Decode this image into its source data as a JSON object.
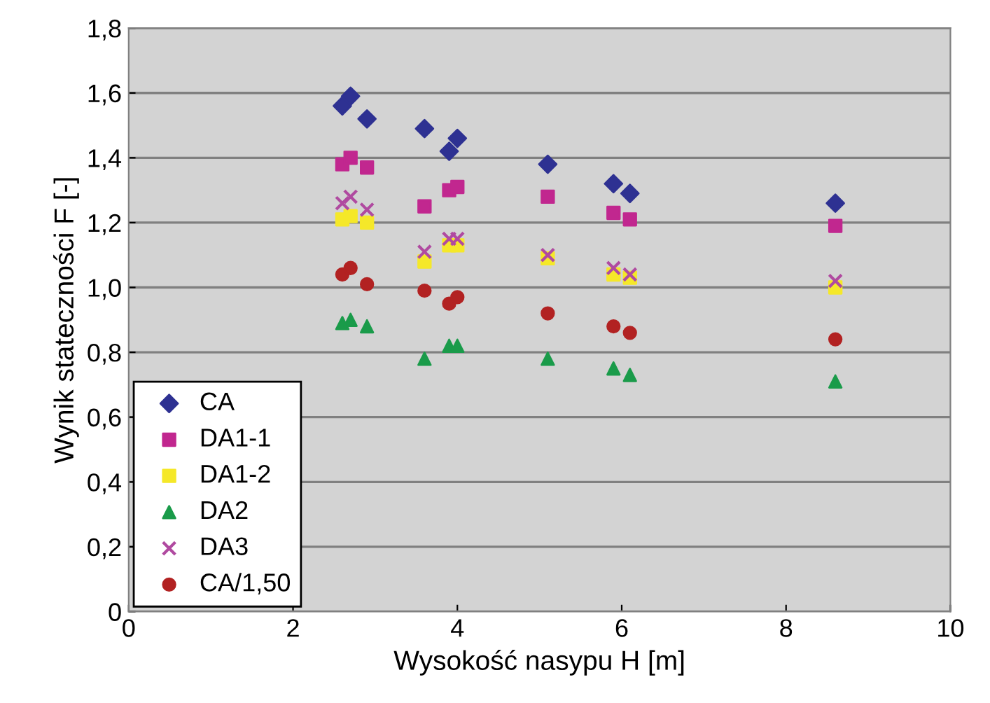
{
  "chart_data": {
    "type": "scatter",
    "xlabel": "Wysokość nasypu H [m]",
    "ylabel": "Wynik stateczności F [-]",
    "x": [
      2.6,
      2.7,
      2.9,
      3.6,
      3.9,
      4.0,
      5.1,
      5.9,
      6.1,
      8.6
    ],
    "series": [
      {
        "name": "CA",
        "color": "#2e3192",
        "marker": "diamond",
        "values": [
          1.56,
          1.59,
          1.52,
          1.49,
          1.42,
          1.46,
          1.38,
          1.32,
          1.29,
          1.26
        ]
      },
      {
        "name": "DA1-1",
        "color": "#c1278f",
        "marker": "square",
        "values": [
          1.38,
          1.4,
          1.37,
          1.25,
          1.3,
          1.31,
          1.28,
          1.23,
          1.21,
          1.19
        ]
      },
      {
        "name": "DA1-2",
        "color": "#f5e829",
        "marker": "square",
        "values": [
          1.21,
          1.22,
          1.2,
          1.08,
          1.13,
          1.13,
          1.09,
          1.04,
          1.03,
          1.0
        ]
      },
      {
        "name": "DA2",
        "color": "#1a9b4a",
        "marker": "triangle",
        "values": [
          0.89,
          0.9,
          0.88,
          0.78,
          0.82,
          0.82,
          0.78,
          0.75,
          0.73,
          0.71
        ]
      },
      {
        "name": "DA3",
        "color": "#b04aa0",
        "marker": "cross",
        "values": [
          1.26,
          1.28,
          1.24,
          1.11,
          1.15,
          1.15,
          1.1,
          1.06,
          1.04,
          1.02
        ]
      },
      {
        "name": "CA/1,50",
        "color": "#b22222",
        "marker": "circle",
        "values": [
          1.04,
          1.06,
          1.01,
          0.99,
          0.95,
          0.97,
          0.92,
          0.88,
          0.86,
          0.84
        ]
      }
    ],
    "xlim": [
      0,
      10
    ],
    "xticks": [
      0,
      2,
      4,
      6,
      8,
      10
    ],
    "ylim": [
      0,
      1.8
    ],
    "yticks": [
      0,
      {
        "value": 0.2,
        "label": "0,2"
      },
      {
        "value": 0.4,
        "label": "0,4"
      },
      {
        "value": 0.6,
        "label": "0,6"
      },
      {
        "value": 0.8,
        "label": "0,8"
      },
      {
        "value": 1.0,
        "label": "1,0"
      },
      {
        "value": 1.2,
        "label": "1,2"
      },
      {
        "value": 1.4,
        "label": "1,4"
      },
      {
        "value": 1.6,
        "label": "1,6"
      },
      {
        "value": 1.8,
        "label": "1,8"
      }
    ],
    "grid": "y",
    "legend": "bottom left"
  }
}
